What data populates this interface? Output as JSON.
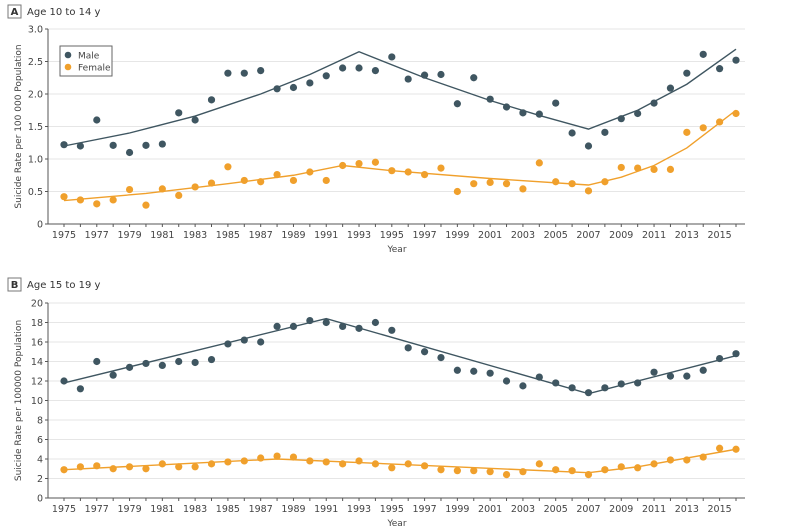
{
  "chart_data": [
    {
      "type": "scatter",
      "panel_label": "A",
      "title": "Age 10 to 14 y",
      "xlabel": "Year",
      "ylabel": "Suicide Rate per 100 000 Population",
      "xlim": [
        1975,
        2016
      ],
      "ylim": [
        0,
        3.0
      ],
      "yticks": [
        "0",
        "0.5",
        "1.0",
        "1.5",
        "2.0",
        "2.5",
        "3.0"
      ],
      "ytick_values": [
        0,
        0.5,
        1,
        1.5,
        2,
        2.5,
        3
      ],
      "xticks": [
        "1975",
        "1977",
        "1979",
        "1981",
        "1983",
        "1985",
        "1987",
        "1989",
        "1991",
        "1993",
        "1995",
        "1997",
        "1999",
        "2001",
        "2003",
        "2005",
        "2007",
        "2009",
        "2011",
        "2013",
        "2015"
      ],
      "legend": {
        "position": "top-left",
        "entries": [
          "Male",
          "Female"
        ]
      },
      "series": [
        {
          "name": "Male",
          "color": "#3f5661",
          "x_start": 1975,
          "values": [
            1.22,
            1.2,
            1.6,
            1.21,
            1.1,
            1.21,
            1.23,
            1.71,
            1.6,
            1.91,
            2.32,
            2.32,
            2.36,
            2.08,
            2.1,
            2.17,
            2.28,
            2.4,
            2.4,
            2.36,
            2.57,
            2.23,
            2.29,
            2.3,
            1.85,
            2.25,
            1.92,
            1.8,
            1.71,
            1.69,
            1.86,
            1.4,
            1.2,
            1.41,
            1.62,
            1.7,
            1.86,
            2.09,
            2.32,
            2.61,
            2.39,
            2.52
          ],
          "trend": [
            [
              1975,
              1.2
            ],
            [
              1979,
              1.4
            ],
            [
              1983,
              1.66
            ],
            [
              1987,
              2.0
            ],
            [
              1990,
              2.3
            ],
            [
              1993,
              2.65
            ],
            [
              1997,
              2.25
            ],
            [
              2001,
              1.9
            ],
            [
              2004,
              1.67
            ],
            [
              2007,
              1.46
            ],
            [
              2010,
              1.75
            ],
            [
              2013,
              2.15
            ],
            [
              2016,
              2.69
            ]
          ]
        },
        {
          "name": "Female",
          "color": "#f0a02c",
          "x_start": 1975,
          "values": [
            0.42,
            0.37,
            0.31,
            0.37,
            0.53,
            0.29,
            0.54,
            0.44,
            0.57,
            0.63,
            0.88,
            0.67,
            0.65,
            0.76,
            0.67,
            0.8,
            0.67,
            0.9,
            0.93,
            0.95,
            0.82,
            0.8,
            0.76,
            0.86,
            0.5,
            0.62,
            0.64,
            0.62,
            0.54,
            0.94,
            0.65,
            0.62,
            0.51,
            0.65,
            0.87,
            0.86,
            0.84,
            0.84,
            1.41,
            1.48,
            1.57,
            1.7
          ],
          "trend": [
            [
              1975,
              0.36
            ],
            [
              1980,
              0.47
            ],
            [
              1985,
              0.62
            ],
            [
              1989,
              0.75
            ],
            [
              1992,
              0.9
            ],
            [
              1995,
              0.82
            ],
            [
              2001,
              0.7
            ],
            [
              2007,
              0.6
            ],
            [
              2009,
              0.72
            ],
            [
              2011,
              0.9
            ],
            [
              2013,
              1.17
            ],
            [
              2016,
              1.75
            ]
          ]
        }
      ]
    },
    {
      "type": "scatter",
      "panel_label": "B",
      "title": "Age 15 to 19 y",
      "xlabel": "Year",
      "ylabel": "Suicide Rate per 100000 Population",
      "xlim": [
        1975,
        2016
      ],
      "ylim": [
        0,
        20
      ],
      "yticks": [
        "0",
        "2",
        "4",
        "6",
        "8",
        "10",
        "12",
        "14",
        "16",
        "18",
        "20"
      ],
      "ytick_values": [
        0,
        2,
        4,
        6,
        8,
        10,
        12,
        14,
        16,
        18,
        20
      ],
      "xticks": [
        "1975",
        "1977",
        "1979",
        "1981",
        "1983",
        "1985",
        "1987",
        "1989",
        "1991",
        "1993",
        "1995",
        "1997",
        "1999",
        "2001",
        "2003",
        "2005",
        "2007",
        "2009",
        "2011",
        "2013",
        "2015"
      ],
      "series": [
        {
          "name": "Male",
          "color": "#3f5661",
          "x_start": 1975,
          "values": [
            12,
            11.2,
            14,
            12.6,
            13.4,
            13.8,
            13.6,
            14,
            13.9,
            14.2,
            15.8,
            16.2,
            16,
            17.6,
            17.6,
            18.2,
            18,
            17.6,
            17.4,
            18,
            17.2,
            15.4,
            15,
            14.4,
            13.1,
            13,
            12.8,
            12,
            11.5,
            12.4,
            11.8,
            11.3,
            10.8,
            11.3,
            11.7,
            11.8,
            12.9,
            12.5,
            12.5,
            13.1,
            14.3,
            14.8
          ],
          "trend": [
            [
              1975,
              11.8
            ],
            [
              1991,
              18.4
            ],
            [
              2007,
              10.7
            ],
            [
              2016,
              14.6
            ]
          ]
        },
        {
          "name": "Female",
          "color": "#f0a02c",
          "x_start": 1975,
          "values": [
            2.9,
            3.2,
            3.3,
            3.0,
            3.2,
            3.0,
            3.5,
            3.2,
            3.2,
            3.5,
            3.7,
            3.8,
            4.1,
            4.3,
            4.2,
            3.8,
            3.7,
            3.5,
            3.8,
            3.5,
            3.1,
            3.5,
            3.3,
            2.9,
            2.8,
            2.8,
            2.7,
            2.4,
            2.7,
            3.5,
            2.9,
            2.8,
            2.4,
            2.9,
            3.2,
            3.1,
            3.5,
            3.9,
            3.9,
            4.2,
            5.1,
            5.0
          ],
          "trend": [
            [
              1975,
              2.9
            ],
            [
              1988,
              4.0
            ],
            [
              2007,
              2.6
            ],
            [
              2010,
              3.2
            ],
            [
              2016,
              5.0
            ]
          ]
        }
      ]
    }
  ]
}
